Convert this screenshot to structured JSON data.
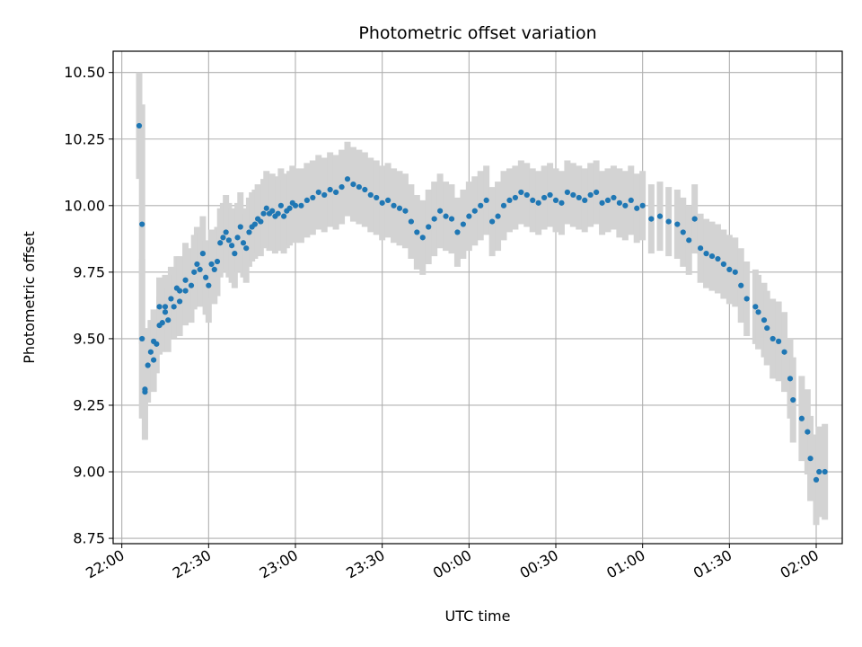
{
  "chart_data": {
    "type": "scatter",
    "title": "Photometric offset variation",
    "xlabel": "UTC time",
    "ylabel": "Photometric offset",
    "xlim": [
      "21:57",
      "02:09"
    ],
    "ylim": [
      8.73,
      10.58
    ],
    "grid": true,
    "x_ticks": [
      "22:00",
      "22:30",
      "23:00",
      "23:30",
      "00:00",
      "00:30",
      "01:00",
      "01:30",
      "02:00"
    ],
    "y_ticks": [
      "8.75",
      "9.00",
      "9.25",
      "9.50",
      "9.75",
      "10.00",
      "10.25",
      "10.50"
    ],
    "colors": {
      "points": "#1f77b4",
      "error_bars": "#d3d3d3",
      "grid": "#b0b0b0"
    },
    "series": [
      {
        "x": [
          "22:06",
          "22:07",
          "22:07",
          "22:08",
          "22:08",
          "22:09",
          "22:10",
          "22:11",
          "22:11",
          "22:12",
          "22:13",
          "22:13",
          "22:14",
          "22:15",
          "22:15",
          "22:16",
          "22:17",
          "22:18",
          "22:19",
          "22:20",
          "22:20",
          "22:22",
          "22:22",
          "22:24",
          "22:25",
          "22:26",
          "22:27",
          "22:28",
          "22:29",
          "22:30",
          "22:31",
          "22:32",
          "22:33",
          "22:34",
          "22:35",
          "22:36",
          "22:37",
          "22:38",
          "22:39",
          "22:40",
          "22:41",
          "22:42",
          "22:43",
          "22:44",
          "22:45",
          "22:46",
          "22:47",
          "22:48",
          "22:49",
          "22:50",
          "22:51",
          "22:52",
          "22:53",
          "22:54",
          "22:55",
          "22:56",
          "22:57",
          "22:58",
          "22:59",
          "23:00",
          "23:02",
          "23:04",
          "23:06",
          "23:08",
          "23:10",
          "23:12",
          "23:14",
          "23:16",
          "23:18",
          "23:20",
          "23:22",
          "23:24",
          "23:26",
          "23:28",
          "23:30",
          "23:32",
          "23:34",
          "23:36",
          "23:38",
          "23:40",
          "23:42",
          "23:44",
          "23:46",
          "23:48",
          "23:50",
          "23:52",
          "23:54",
          "23:56",
          "23:58",
          "00:00",
          "00:02",
          "00:04",
          "00:06",
          "00:08",
          "00:10",
          "00:12",
          "00:14",
          "00:16",
          "00:18",
          "00:20",
          "00:22",
          "00:24",
          "00:26",
          "00:28",
          "00:30",
          "00:32",
          "00:34",
          "00:36",
          "00:38",
          "00:40",
          "00:42",
          "00:44",
          "00:46",
          "00:48",
          "00:50",
          "00:52",
          "00:54",
          "00:56",
          "00:58",
          "01:00",
          "01:03",
          "01:06",
          "01:09",
          "01:12",
          "01:14",
          "01:16",
          "01:18",
          "01:20",
          "01:22",
          "01:24",
          "01:26",
          "01:28",
          "01:30",
          "01:32",
          "01:34",
          "01:36",
          "01:39",
          "01:40",
          "01:42",
          "01:43",
          "01:45",
          "01:47",
          "01:49",
          "01:51",
          "01:52",
          "01:55",
          "01:57",
          "01:58",
          "02:00",
          "02:01",
          "02:03"
        ],
        "y": [
          10.3,
          9.93,
          9.5,
          9.3,
          9.31,
          9.4,
          9.45,
          9.42,
          9.49,
          9.48,
          9.55,
          9.62,
          9.56,
          9.6,
          9.62,
          9.57,
          9.65,
          9.62,
          9.69,
          9.64,
          9.68,
          9.68,
          9.72,
          9.7,
          9.75,
          9.78,
          9.76,
          9.82,
          9.73,
          9.7,
          9.78,
          9.76,
          9.79,
          9.86,
          9.88,
          9.9,
          9.87,
          9.85,
          9.82,
          9.88,
          9.92,
          9.86,
          9.84,
          9.9,
          9.92,
          9.93,
          9.95,
          9.94,
          9.97,
          9.99,
          9.97,
          9.98,
          9.96,
          9.97,
          10.0,
          9.96,
          9.98,
          9.99,
          10.01,
          10.0,
          10.0,
          10.02,
          10.03,
          10.05,
          10.04,
          10.06,
          10.05,
          10.07,
          10.1,
          10.08,
          10.07,
          10.06,
          10.04,
          10.03,
          10.01,
          10.02,
          10.0,
          9.99,
          9.98,
          9.94,
          9.9,
          9.88,
          9.92,
          9.95,
          9.98,
          9.96,
          9.95,
          9.9,
          9.93,
          9.96,
          9.98,
          10.0,
          10.02,
          9.94,
          9.96,
          10.0,
          10.02,
          10.03,
          10.05,
          10.04,
          10.02,
          10.01,
          10.03,
          10.04,
          10.02,
          10.01,
          10.05,
          10.04,
          10.03,
          10.02,
          10.04,
          10.05,
          10.01,
          10.02,
          10.03,
          10.01,
          10.0,
          10.02,
          9.99,
          10.0,
          9.95,
          9.96,
          9.94,
          9.93,
          9.9,
          9.87,
          9.95,
          9.84,
          9.82,
          9.81,
          9.8,
          9.78,
          9.76,
          9.75,
          9.7,
          9.65,
          9.62,
          9.6,
          9.57,
          9.54,
          9.5,
          9.49,
          9.45,
          9.35,
          9.27,
          9.2,
          9.15,
          9.05,
          8.97,
          9.0,
          9.0
        ],
        "error": [
          0.2,
          0.45,
          0.3,
          0.18,
          0.15,
          0.14,
          0.12,
          0.12,
          0.12,
          0.11,
          0.11,
          0.11,
          0.11,
          0.12,
          0.12,
          0.12,
          0.12,
          0.12,
          0.12,
          0.13,
          0.13,
          0.13,
          0.14,
          0.14,
          0.14,
          0.14,
          0.14,
          0.14,
          0.14,
          0.14,
          0.13,
          0.13,
          0.13,
          0.13,
          0.13,
          0.14,
          0.14,
          0.14,
          0.13,
          0.13,
          0.13,
          0.13,
          0.13,
          0.13,
          0.13,
          0.13,
          0.13,
          0.13,
          0.13,
          0.14,
          0.14,
          0.14,
          0.14,
          0.14,
          0.14,
          0.14,
          0.14,
          0.14,
          0.14,
          0.14,
          0.14,
          0.14,
          0.14,
          0.14,
          0.14,
          0.14,
          0.14,
          0.14,
          0.14,
          0.14,
          0.14,
          0.14,
          0.14,
          0.14,
          0.14,
          0.14,
          0.14,
          0.14,
          0.14,
          0.14,
          0.14,
          0.14,
          0.14,
          0.14,
          0.14,
          0.13,
          0.13,
          0.13,
          0.13,
          0.13,
          0.13,
          0.13,
          0.13,
          0.13,
          0.13,
          0.13,
          0.12,
          0.12,
          0.12,
          0.12,
          0.12,
          0.12,
          0.12,
          0.12,
          0.12,
          0.12,
          0.12,
          0.12,
          0.12,
          0.12,
          0.12,
          0.12,
          0.12,
          0.12,
          0.12,
          0.13,
          0.13,
          0.13,
          0.13,
          0.13,
          0.13,
          0.13,
          0.13,
          0.13,
          0.13,
          0.13,
          0.13,
          0.13,
          0.13,
          0.13,
          0.13,
          0.13,
          0.13,
          0.13,
          0.14,
          0.14,
          0.14,
          0.14,
          0.14,
          0.14,
          0.15,
          0.15,
          0.15,
          0.15,
          0.16,
          0.16,
          0.16,
          0.16,
          0.17,
          0.17,
          0.18
        ]
      }
    ]
  }
}
